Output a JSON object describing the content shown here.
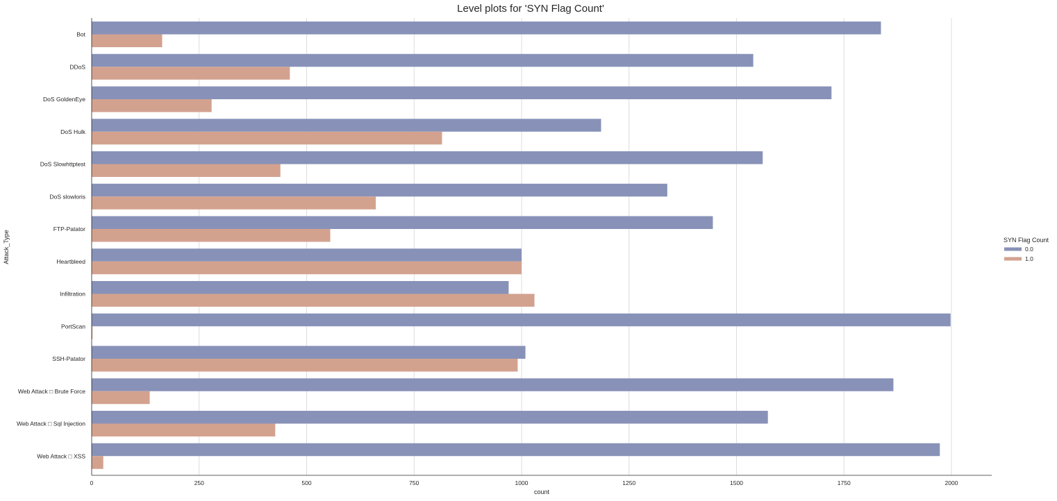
{
  "chart_data": {
    "type": "bar",
    "orientation": "horizontal",
    "title": "Level plots for 'SYN Flag Count'",
    "xlabel": "count",
    "ylabel": "Attack_Type",
    "xlim": [
      0,
      2100
    ],
    "xticks": [
      0,
      250,
      500,
      750,
      1000,
      1250,
      1500,
      1750,
      2000
    ],
    "grid": "vertical",
    "legend": {
      "title": "SYN Flag Count",
      "placement": "right"
    },
    "categories": [
      "Bot",
      "DDoS",
      "DoS GoldenEye",
      "DoS Hulk",
      "DoS Slowhttptest",
      "DoS slowloris",
      "FTP-Patator",
      "Heartbleed",
      "Infiltration",
      "PortScan",
      "SSH-Patator",
      "Web Attack □ Brute Force",
      "Web Attack □ Sql Injection",
      "Web Attack □ XSS"
    ],
    "series": [
      {
        "name": "0.0",
        "color": "#8892b8",
        "values": [
          1836,
          1539,
          1721,
          1185,
          1561,
          1339,
          1445,
          1000,
          970,
          1998,
          1009,
          1865,
          1573,
          1973
        ]
      },
      {
        "name": "1.0",
        "color": "#d3a28f",
        "values": [
          164,
          461,
          279,
          815,
          439,
          661,
          555,
          1000,
          1030,
          2,
          991,
          135,
          427,
          27
        ]
      }
    ]
  }
}
